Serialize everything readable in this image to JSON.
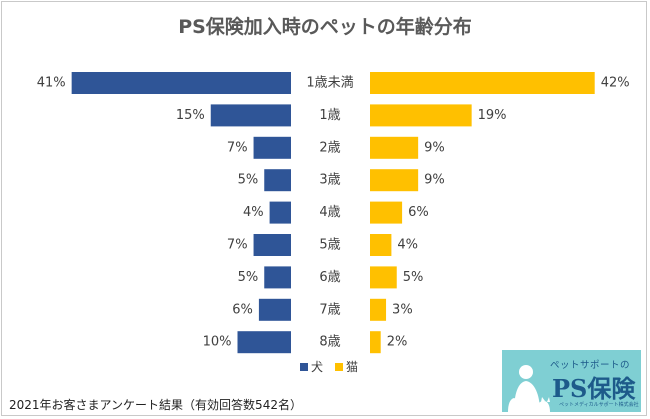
{
  "title": "PS保険加入時のペットの年齢分布",
  "footnote": "2021年お客さまアンケート結果（有効回答数542名）",
  "logo": {
    "tagline": "ペットサポートの",
    "name": "PS保険",
    "sub": "ペットメディカルサポート株式会社"
  },
  "chart_data": {
    "type": "bar",
    "orientation": "horizontal-butterfly",
    "categories": [
      "1歳未満",
      "1歳",
      "2歳",
      "3歳",
      "4歳",
      "5歳",
      "6歳",
      "7歳",
      "8歳"
    ],
    "series": [
      {
        "name": "犬",
        "color": "#2f5597",
        "values": [
          41,
          15,
          7,
          5,
          4,
          7,
          5,
          6,
          10
        ],
        "labels": [
          "41%",
          "15%",
          "7%",
          "5%",
          "4%",
          "7%",
          "5%",
          "6%",
          "10%"
        ]
      },
      {
        "name": "猫",
        "color": "#ffc000",
        "values": [
          42,
          19,
          9,
          9,
          6,
          4,
          5,
          3,
          2
        ],
        "labels": [
          "42%",
          "19%",
          "9%",
          "9%",
          "6%",
          "4%",
          "5%",
          "3%",
          "2%"
        ]
      }
    ],
    "unit": "%",
    "grid": false,
    "legend": "bottom-center"
  }
}
